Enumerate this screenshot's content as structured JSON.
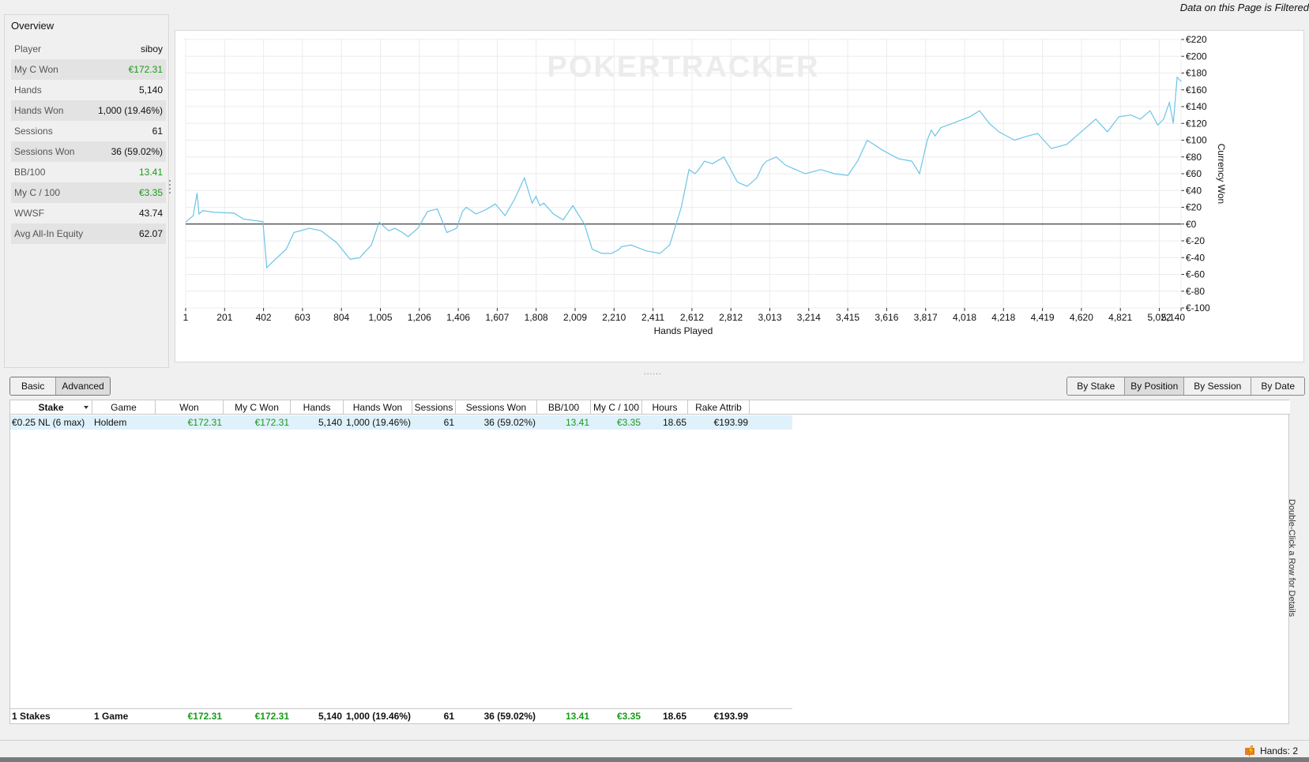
{
  "header": {
    "filter_note": "Data on this Page is Filtered"
  },
  "overview": {
    "title": "Overview",
    "rows": [
      {
        "label": "Player",
        "value": "siboy",
        "green": false
      },
      {
        "label": "My C Won",
        "value": "€172.31",
        "green": true
      },
      {
        "label": "Hands",
        "value": "5,140",
        "green": false
      },
      {
        "label": "Hands Won",
        "value": "1,000 (19.46%)",
        "green": false
      },
      {
        "label": "Sessions",
        "value": "61",
        "green": false
      },
      {
        "label": "Sessions Won",
        "value": "36 (59.02%)",
        "green": false
      },
      {
        "label": "BB/100",
        "value": "13.41",
        "green": true
      },
      {
        "label": "My C / 100",
        "value": "€3.35",
        "green": true
      },
      {
        "label": "WWSF",
        "value": "43.74",
        "green": false
      },
      {
        "label": "Avg All-In Equity",
        "value": "62.07",
        "green": false
      }
    ]
  },
  "chart_data": {
    "type": "line",
    "watermark": "POKERTRACKER",
    "xlabel": "Hands Played",
    "ylabel": "Currency Won",
    "x_ticks": [
      "1",
      "201",
      "402",
      "603",
      "804",
      "1,005",
      "1,206",
      "1,406",
      "1,607",
      "1,808",
      "2,009",
      "2,210",
      "2,411",
      "2,612",
      "2,812",
      "3,013",
      "3,214",
      "3,415",
      "3,616",
      "3,817",
      "4,018",
      "4,218",
      "4,419",
      "4,620",
      "4,821",
      "5,022",
      "5,140"
    ],
    "y_ticks": [
      "€220",
      "€200",
      "€180",
      "€160",
      "€140",
      "€120",
      "€100",
      "€80",
      "€60",
      "€40",
      "€20",
      "€0",
      "€-20",
      "€-40",
      "€-60",
      "€-80",
      "€-100"
    ],
    "xlim": [
      1,
      5140
    ],
    "ylim": [
      -100,
      220
    ],
    "grid": true,
    "series": [
      {
        "color": "#6cc4e8",
        "x": [
          1,
          40,
          60,
          70,
          90,
          150,
          250,
          300,
          400,
          420,
          450,
          520,
          560,
          640,
          700,
          780,
          850,
          900,
          960,
          1000,
          1050,
          1080,
          1120,
          1150,
          1200,
          1250,
          1300,
          1350,
          1400,
          1430,
          1450,
          1500,
          1550,
          1600,
          1650,
          1700,
          1750,
          1790,
          1810,
          1830,
          1850,
          1900,
          1950,
          2000,
          2060,
          2100,
          2150,
          2200,
          2240,
          2250,
          2300,
          2380,
          2450,
          2500,
          2560,
          2600,
          2630,
          2650,
          2680,
          2720,
          2780,
          2850,
          2900,
          2950,
          2980,
          3000,
          3050,
          3100,
          3150,
          3200,
          3280,
          3350,
          3420,
          3470,
          3520,
          3600,
          3680,
          3750,
          3790,
          3830,
          3850,
          3870,
          3900,
          3960,
          4050,
          4100,
          4150,
          4200,
          4280,
          4350,
          4400,
          4470,
          4550,
          4600,
          4650,
          4700,
          4760,
          4820,
          4880,
          4930,
          4980,
          5020,
          5050,
          5080,
          5100,
          5120,
          5140
        ],
        "y": [
          2,
          10,
          37,
          12,
          16,
          14,
          13,
          6,
          3,
          -52,
          -45,
          -30,
          -10,
          -5,
          -8,
          -22,
          -42,
          -40,
          -25,
          2,
          -8,
          -5,
          -10,
          -15,
          -5,
          15,
          18,
          -10,
          -5,
          15,
          20,
          12,
          17,
          24,
          10,
          30,
          55,
          25,
          33,
          22,
          25,
          12,
          5,
          22,
          0,
          -30,
          -35,
          -35,
          -30,
          -27,
          -25,
          -32,
          -35,
          -25,
          20,
          65,
          60,
          65,
          75,
          72,
          80,
          50,
          45,
          55,
          70,
          75,
          80,
          70,
          65,
          60,
          65,
          60,
          58,
          75,
          100,
          88,
          78,
          75,
          60,
          100,
          112,
          105,
          115,
          120,
          128,
          135,
          120,
          110,
          100,
          105,
          108,
          90,
          95,
          105,
          115,
          125,
          110,
          128,
          130,
          125,
          135,
          118,
          125,
          145,
          120,
          175,
          170
        ]
      }
    ]
  },
  "splitter": "......",
  "tabs_left": [
    "Basic",
    "Advanced"
  ],
  "tabs_right": [
    "By Stake",
    "By Position",
    "By Session",
    "By Date"
  ],
  "table": {
    "columns": [
      "Stake",
      "Game",
      "Won",
      "My C Won",
      "Hands",
      "Hands Won",
      "Sessions",
      "Sessions Won",
      "BB/100",
      "My C / 100",
      "Hours",
      "Rake Attrib"
    ],
    "rows": [
      [
        "€0.25 NL (6 max)",
        "Holdem",
        "€172.31",
        "€172.31",
        "5,140",
        "1,000 (19.46%)",
        "61",
        "36 (59.02%)",
        "13.41",
        "€3.35",
        "18.65",
        "€193.99"
      ]
    ],
    "totals": [
      "1 Stakes",
      "1 Game",
      "€172.31",
      "€172.31",
      "5,140",
      "1,000 (19.46%)",
      "61",
      "36 (59.02%)",
      "13.41",
      "€3.35",
      "18.65",
      "€193.99"
    ],
    "side_hint": "Double-Click a Row for Details"
  },
  "status": {
    "hands": "Hands: 2"
  },
  "colors": {
    "green": "#1a9a1a",
    "line": "#6cc4e8",
    "row_highlight": "#dff1fb"
  }
}
